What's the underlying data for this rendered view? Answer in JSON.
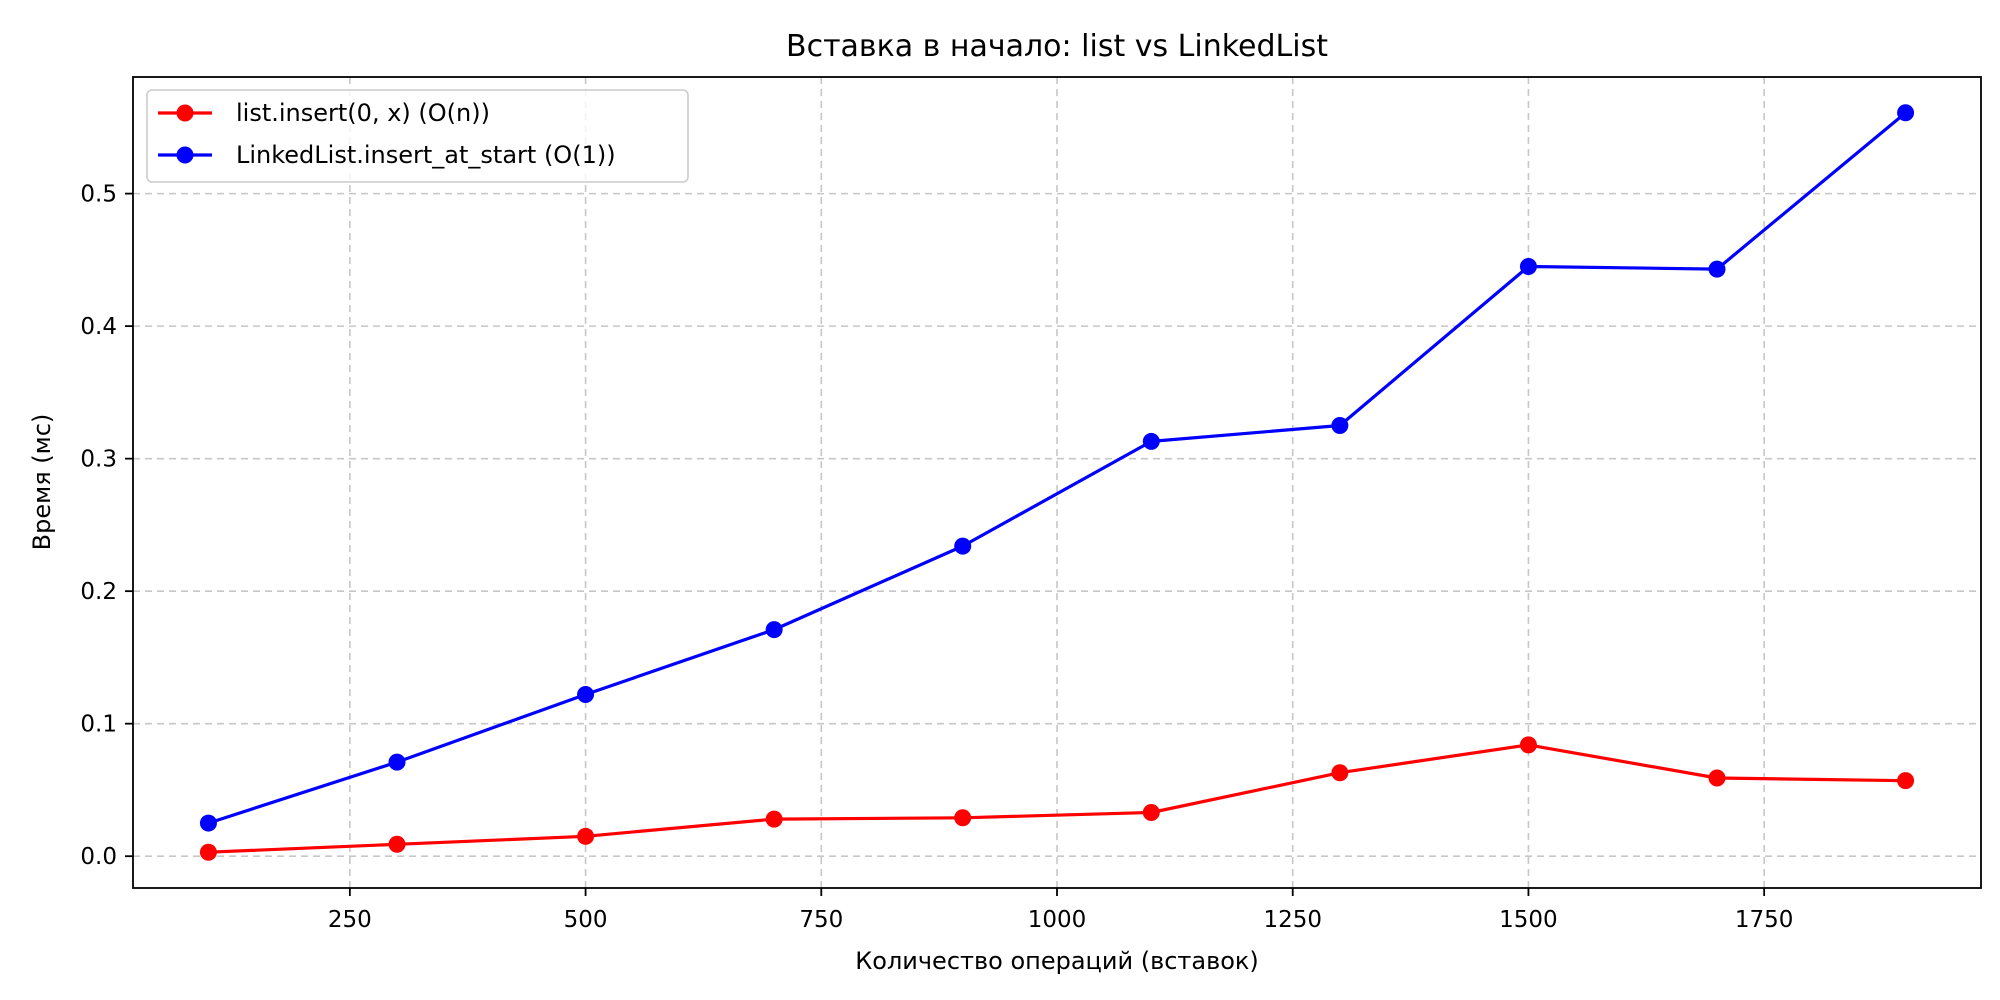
{
  "chart_data": {
    "type": "line",
    "title": "Вставка в начало: list vs LinkedList",
    "xlabel": "Количество операций (вставок)",
    "ylabel": "Время (мс)",
    "xlim": [
      20,
      1980
    ],
    "ylim": [
      -0.024,
      0.588
    ],
    "xticks": [
      250,
      500,
      750,
      1000,
      1250,
      1500,
      1750
    ],
    "yticks": [
      0.0,
      0.1,
      0.2,
      0.3,
      0.4,
      0.5
    ],
    "grid": true,
    "legend_position": "upper-left",
    "x": [
      100,
      300,
      500,
      700,
      900,
      1100,
      1300,
      1500,
      1700,
      1900
    ],
    "series": [
      {
        "name": "list.insert(0, x) (O(n))",
        "color": "#ff0000",
        "values": [
          0.003,
          0.009,
          0.015,
          0.028,
          0.029,
          0.033,
          0.063,
          0.084,
          0.059,
          0.057
        ]
      },
      {
        "name": "LinkedList.insert_at_start (O(1))",
        "color": "#0000ff",
        "values": [
          0.025,
          0.071,
          0.122,
          0.171,
          0.234,
          0.313,
          0.325,
          0.445,
          0.443,
          0.561
        ]
      }
    ]
  }
}
